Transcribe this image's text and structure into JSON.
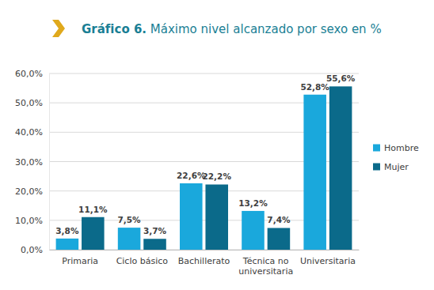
{
  "chart_data": {
    "type": "bar",
    "title": "Gráfico 6. Máximo nivel alcanzado por sexo en %",
    "categories": [
      "Primaria",
      "Ciclo básico",
      "Bachillerato",
      "Técnica no universitaria",
      "Universitaria"
    ],
    "series": [
      {
        "name": "Hombre",
        "color": "#1aa8dc",
        "values": [
          3.8,
          7.5,
          22.6,
          13.2,
          52.8
        ],
        "value_labels": [
          "3,8%",
          "7,5%",
          "22,6%",
          "13,2%",
          "52,8%"
        ]
      },
      {
        "name": "Mujer",
        "color": "#0b6a8a",
        "values": [
          11.1,
          3.7,
          22.2,
          7.4,
          55.6
        ],
        "value_labels": [
          "11,1%",
          "3,7%",
          "22,2%",
          "7,4%",
          "55,6%"
        ]
      }
    ],
    "ylim": [
      0,
      60
    ],
    "yticks": [
      {
        "value": 0,
        "label": "0,0%"
      },
      {
        "value": 10,
        "label": "10,0%"
      },
      {
        "value": 20,
        "label": "20,0%"
      },
      {
        "value": 30,
        "label": "30,0%"
      },
      {
        "value": 40,
        "label": "40,0%"
      },
      {
        "value": 50,
        "label": "50,0%"
      },
      {
        "value": 60,
        "label": "60,0%"
      }
    ],
    "grid": true,
    "legend": "right",
    "data_labels": true
  }
}
